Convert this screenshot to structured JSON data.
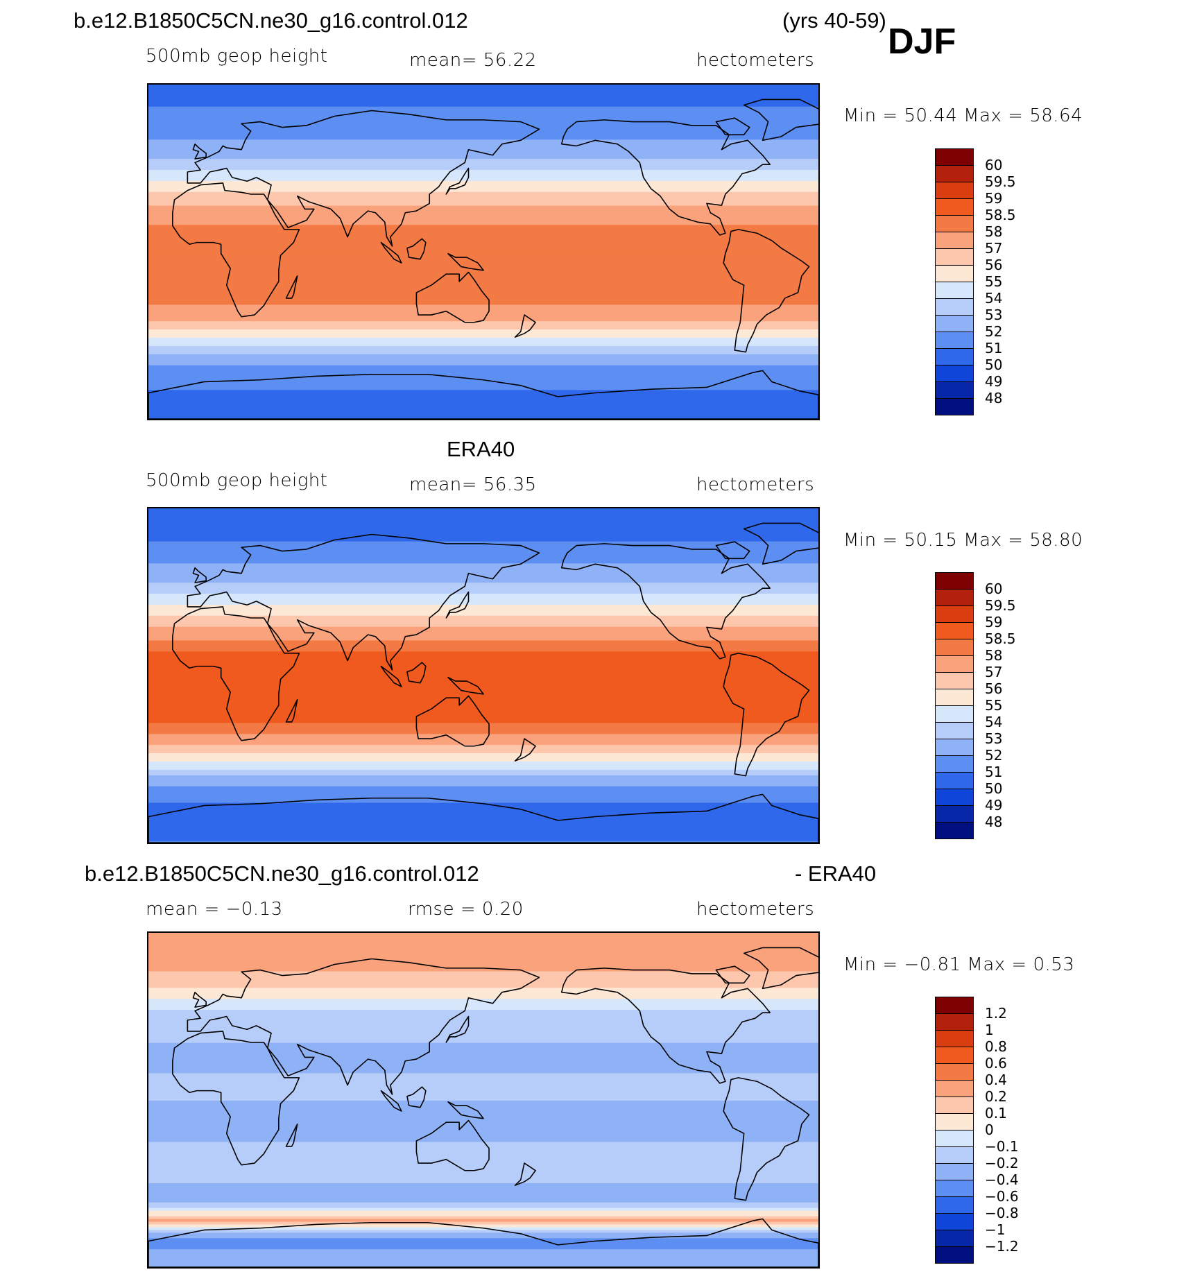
{
  "season": "DJF",
  "panels": [
    {
      "title_left": "b.e12.B1850C5CN.ne30_g16.control.012",
      "title_right": "(yrs 40-59)",
      "subtitle_left": "500mb geop height",
      "subtitle_center": "mean=   56.22",
      "subtitle_right": "hectometers",
      "minmax": "Min =   50.44  Max =   58.64"
    },
    {
      "title_center": "ERA40",
      "subtitle_left": "500mb geop height",
      "subtitle_center": "mean=   56.35",
      "subtitle_right": "hectometers",
      "minmax": "Min =   50.15  Max =   58.80"
    },
    {
      "title_left": "b.e12.B1850C5CN.ne30_g16.control.012",
      "title_right": "- ERA40",
      "subtitle_left": "mean =   −0.13",
      "subtitle_center": "rmse =     0.20",
      "subtitle_right": "hectometers",
      "minmax": "Min =   −0.81  Max =     0.53"
    }
  ],
  "chart_data": [
    {
      "type": "heatmap",
      "title": "b.e12.B1850C5CN.ne30_g16.control.012 (yrs 40-59) DJF",
      "variable": "500mb geop height",
      "units": "hectometers",
      "mean": 56.22,
      "min": 50.44,
      "max": 58.64,
      "colorbar_levels": [
        "60",
        "59.5",
        "59",
        "58.5",
        "58",
        "57",
        "56",
        "55",
        "54",
        "53",
        "52",
        "51",
        "50",
        "49",
        "48"
      ],
      "colorbar_colors": [
        "#7f0000",
        "#b3200c",
        "#d93d10",
        "#f05a1e",
        "#f47a45",
        "#f9a27c",
        "#fdc7ad",
        "#fde8d6",
        "#d6e6fb",
        "#b6cdfa",
        "#8fb2f7",
        "#5d8ff2",
        "#2f68ea",
        "#0f45d8",
        "#0628a8",
        "#000f80"
      ],
      "lat_profile": [
        [
          -90,
          50.9
        ],
        [
          -75,
          51.0
        ],
        [
          -65,
          51.6
        ],
        [
          -58,
          52.4
        ],
        [
          -52,
          53.6
        ],
        [
          -47,
          54.8
        ],
        [
          -42,
          56.0
        ],
        [
          -38,
          57.0
        ],
        [
          -32,
          57.7
        ],
        [
          -25,
          58.3
        ],
        [
          -15,
          58.2
        ],
        [
          0,
          58.1
        ],
        [
          12,
          58.2
        ],
        [
          20,
          57.6
        ],
        [
          28,
          56.5
        ],
        [
          35,
          55.5
        ],
        [
          42,
          54.3
        ],
        [
          50,
          53.0
        ],
        [
          60,
          52.0
        ],
        [
          72,
          51.1
        ],
        [
          90,
          50.8
        ]
      ]
    },
    {
      "type": "heatmap",
      "title": "ERA40",
      "variable": "500mb geop height",
      "units": "hectometers",
      "mean": 56.35,
      "min": 50.15,
      "max": 58.8,
      "colorbar_levels": [
        "60",
        "59.5",
        "59",
        "58.5",
        "58",
        "57",
        "56",
        "55",
        "54",
        "53",
        "52",
        "51",
        "50",
        "49",
        "48"
      ],
      "colorbar_colors": [
        "#7f0000",
        "#b3200c",
        "#d93d10",
        "#f05a1e",
        "#f47a45",
        "#f9a27c",
        "#fdc7ad",
        "#fde8d6",
        "#d6e6fb",
        "#b6cdfa",
        "#8fb2f7",
        "#5d8ff2",
        "#2f68ea",
        "#0f45d8",
        "#0628a8",
        "#000f80"
      ],
      "lat_profile": [
        [
          -90,
          51.0
        ],
        [
          -75,
          50.6
        ],
        [
          -65,
          51.2
        ],
        [
          -58,
          52.2
        ],
        [
          -52,
          53.5
        ],
        [
          -47,
          54.8
        ],
        [
          -42,
          56.0
        ],
        [
          -38,
          57.0
        ],
        [
          -32,
          57.9
        ],
        [
          -25,
          58.6
        ],
        [
          -15,
          58.7
        ],
        [
          0,
          58.6
        ],
        [
          12,
          58.6
        ],
        [
          20,
          57.9
        ],
        [
          28,
          56.8
        ],
        [
          35,
          55.5
        ],
        [
          42,
          54.2
        ],
        [
          50,
          53.0
        ],
        [
          60,
          52.0
        ],
        [
          72,
          51.0
        ],
        [
          90,
          50.7
        ]
      ]
    },
    {
      "type": "heatmap",
      "title": "b.e12.B1850C5CN.ne30_g16.control.012 - ERA40",
      "units": "hectometers",
      "mean": -0.13,
      "rmse": 0.2,
      "min": -0.81,
      "max": 0.53,
      "colorbar_levels": [
        "1.2",
        "1",
        "0.8",
        "0.6",
        "0.4",
        "0.2",
        "0.1",
        "0",
        "−0.1",
        "−0.2",
        "−0.4",
        "−0.6",
        "−0.8",
        "−1",
        "−1.2"
      ],
      "colorbar_colors": [
        "#7f0000",
        "#b3200c",
        "#d93d10",
        "#f05a1e",
        "#f47a45",
        "#f9a27c",
        "#fdc7ad",
        "#fde8d6",
        "#d6e6fb",
        "#b6cdfa",
        "#8fb2f7",
        "#5d8ff2",
        "#2f68ea",
        "#0f45d8",
        "#0628a8",
        "#000f80"
      ],
      "lat_profile": [
        [
          -90,
          -0.3
        ],
        [
          -75,
          -0.45
        ],
        [
          -65,
          0.25
        ],
        [
          -58,
          -0.1
        ],
        [
          -50,
          -0.4
        ],
        [
          -42,
          -0.1
        ],
        [
          -30,
          -0.15
        ],
        [
          -15,
          -0.25
        ],
        [
          0,
          -0.2
        ],
        [
          15,
          -0.2
        ],
        [
          25,
          -0.35
        ],
        [
          35,
          -0.1
        ],
        [
          45,
          -0.15
        ],
        [
          60,
          0.1
        ],
        [
          75,
          0.25
        ],
        [
          90,
          0.3
        ]
      ]
    }
  ]
}
